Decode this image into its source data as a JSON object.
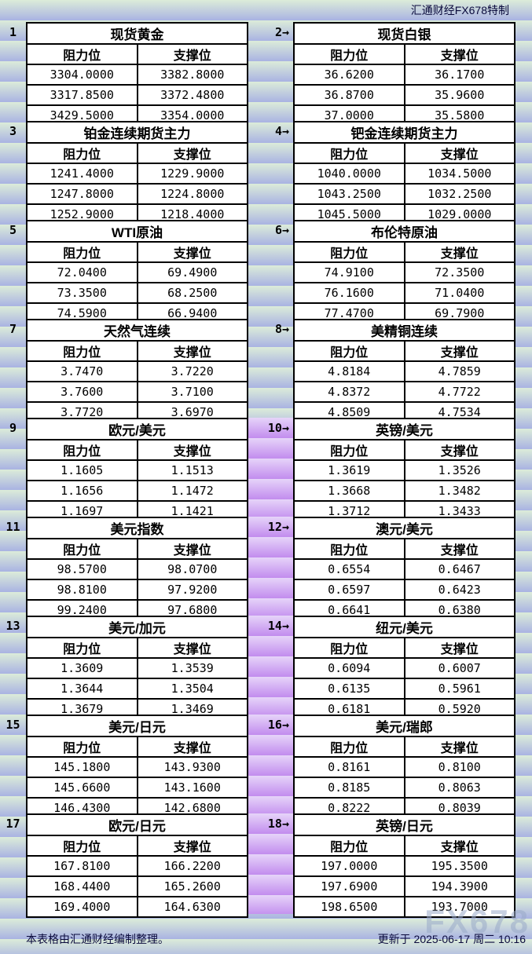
{
  "colors": {
    "theme_yellow": "#F8F18C",
    "theme_blue": "#AACDF0",
    "theme_purple": "#C78CEC",
    "gutter_purple": "#C28CEE",
    "background_stripe_green": "#DCECD9",
    "background_stripe_blue": "#A9B3E2",
    "cell_background": "#FFFFFF",
    "border": "#000000",
    "text": "#000000",
    "secondary_text": "#0A0A3C",
    "watermark_gray": "#9AAAC9"
  },
  "chart_data": {
    "type": "table",
    "title": "汇通财经FX678特制",
    "col_headers": [
      "阻力位",
      "支撑位"
    ],
    "columns_per_row": 2,
    "source_note": "本表格由汇通财经编制整理。",
    "updated": "更新于 2025-06-17 周二 10:16",
    "watermark": "FX678",
    "blocks": [
      {
        "num": "1",
        "title": "现货黄金",
        "theme": "yellow",
        "rows": [
          [
            "3304.0000",
            "3382.8000"
          ],
          [
            "3317.8500",
            "3372.4800"
          ],
          [
            "3429.5000",
            "3354.0000"
          ]
        ]
      },
      {
        "num": "2→",
        "title": "现货白银",
        "theme": "yellow",
        "rows": [
          [
            "36.6200",
            "36.1700"
          ],
          [
            "36.8700",
            "35.9600"
          ],
          [
            "37.0000",
            "35.5800"
          ]
        ]
      },
      {
        "num": "3",
        "title": "铂金连续期货主力",
        "theme": "blue",
        "rows": [
          [
            "1241.4000",
            "1229.9000"
          ],
          [
            "1247.8000",
            "1224.8000"
          ],
          [
            "1252.9000",
            "1218.4000"
          ]
        ]
      },
      {
        "num": "4→",
        "title": "钯金连续期货主力",
        "theme": "blue",
        "rows": [
          [
            "1040.0000",
            "1034.5000"
          ],
          [
            "1043.2500",
            "1032.2500"
          ],
          [
            "1045.5000",
            "1029.0000"
          ]
        ]
      },
      {
        "num": "5",
        "title": "WTI原油",
        "theme": "yellow",
        "rows": [
          [
            "72.0400",
            "69.4900"
          ],
          [
            "73.3500",
            "68.2500"
          ],
          [
            "74.5900",
            "66.9400"
          ]
        ]
      },
      {
        "num": "6→",
        "title": "布伦特原油",
        "theme": "yellow",
        "rows": [
          [
            "74.9100",
            "72.3500"
          ],
          [
            "76.1600",
            "71.0400"
          ],
          [
            "77.4700",
            "69.7900"
          ]
        ]
      },
      {
        "num": "7",
        "title": "天然气连续",
        "theme": "blue",
        "rows": [
          [
            "3.7470",
            "3.7220"
          ],
          [
            "3.7600",
            "3.7100"
          ],
          [
            "3.7720",
            "3.6970"
          ]
        ]
      },
      {
        "num": "8→",
        "title": "美精铜连续",
        "theme": "blue",
        "rows": [
          [
            "4.8184",
            "4.7859"
          ],
          [
            "4.8372",
            "4.7722"
          ],
          [
            "4.8509",
            "4.7534"
          ]
        ]
      },
      {
        "num": "9",
        "title": "欧元/美元",
        "theme": "purple",
        "rows": [
          [
            "1.1605",
            "1.1513"
          ],
          [
            "1.1656",
            "1.1472"
          ],
          [
            "1.1697",
            "1.1421"
          ]
        ]
      },
      {
        "num": "10→",
        "title": "英镑/美元",
        "theme": "purple",
        "rows": [
          [
            "1.3619",
            "1.3526"
          ],
          [
            "1.3668",
            "1.3482"
          ],
          [
            "1.3712",
            "1.3433"
          ]
        ]
      },
      {
        "num": "11",
        "title": "美元指数",
        "theme": "blue",
        "rows": [
          [
            "98.5700",
            "98.0700"
          ],
          [
            "98.8100",
            "97.9200"
          ],
          [
            "99.2400",
            "97.6800"
          ]
        ]
      },
      {
        "num": "12→",
        "title": "澳元/美元",
        "theme": "blue",
        "rows": [
          [
            "0.6554",
            "0.6467"
          ],
          [
            "0.6597",
            "0.6423"
          ],
          [
            "0.6641",
            "0.6380"
          ]
        ]
      },
      {
        "num": "13",
        "title": "美元/加元",
        "theme": "purple",
        "rows": [
          [
            "1.3609",
            "1.3539"
          ],
          [
            "1.3644",
            "1.3504"
          ],
          [
            "1.3679",
            "1.3469"
          ]
        ]
      },
      {
        "num": "14→",
        "title": "纽元/美元",
        "theme": "purple",
        "rows": [
          [
            "0.6094",
            "0.6007"
          ],
          [
            "0.6135",
            "0.5961"
          ],
          [
            "0.6181",
            "0.5920"
          ]
        ]
      },
      {
        "num": "15",
        "title": "美元/日元",
        "theme": "blue",
        "rows": [
          [
            "145.1800",
            "143.9300"
          ],
          [
            "145.6600",
            "143.1600"
          ],
          [
            "146.4300",
            "142.6800"
          ]
        ]
      },
      {
        "num": "16→",
        "title": "美元/瑞郎",
        "theme": "blue",
        "rows": [
          [
            "0.8161",
            "0.8100"
          ],
          [
            "0.8185",
            "0.8063"
          ],
          [
            "0.8222",
            "0.8039"
          ]
        ]
      },
      {
        "num": "17",
        "title": "欧元/日元",
        "theme": "purple",
        "rows": [
          [
            "167.8100",
            "166.2200"
          ],
          [
            "168.4400",
            "165.2600"
          ],
          [
            "169.4000",
            "164.6300"
          ]
        ]
      },
      {
        "num": "18→",
        "title": "英镑/日元",
        "theme": "purple",
        "rows": [
          [
            "197.0000",
            "195.3500"
          ],
          [
            "197.6900",
            "194.3900"
          ],
          [
            "198.6500",
            "193.7000"
          ]
        ]
      }
    ]
  }
}
